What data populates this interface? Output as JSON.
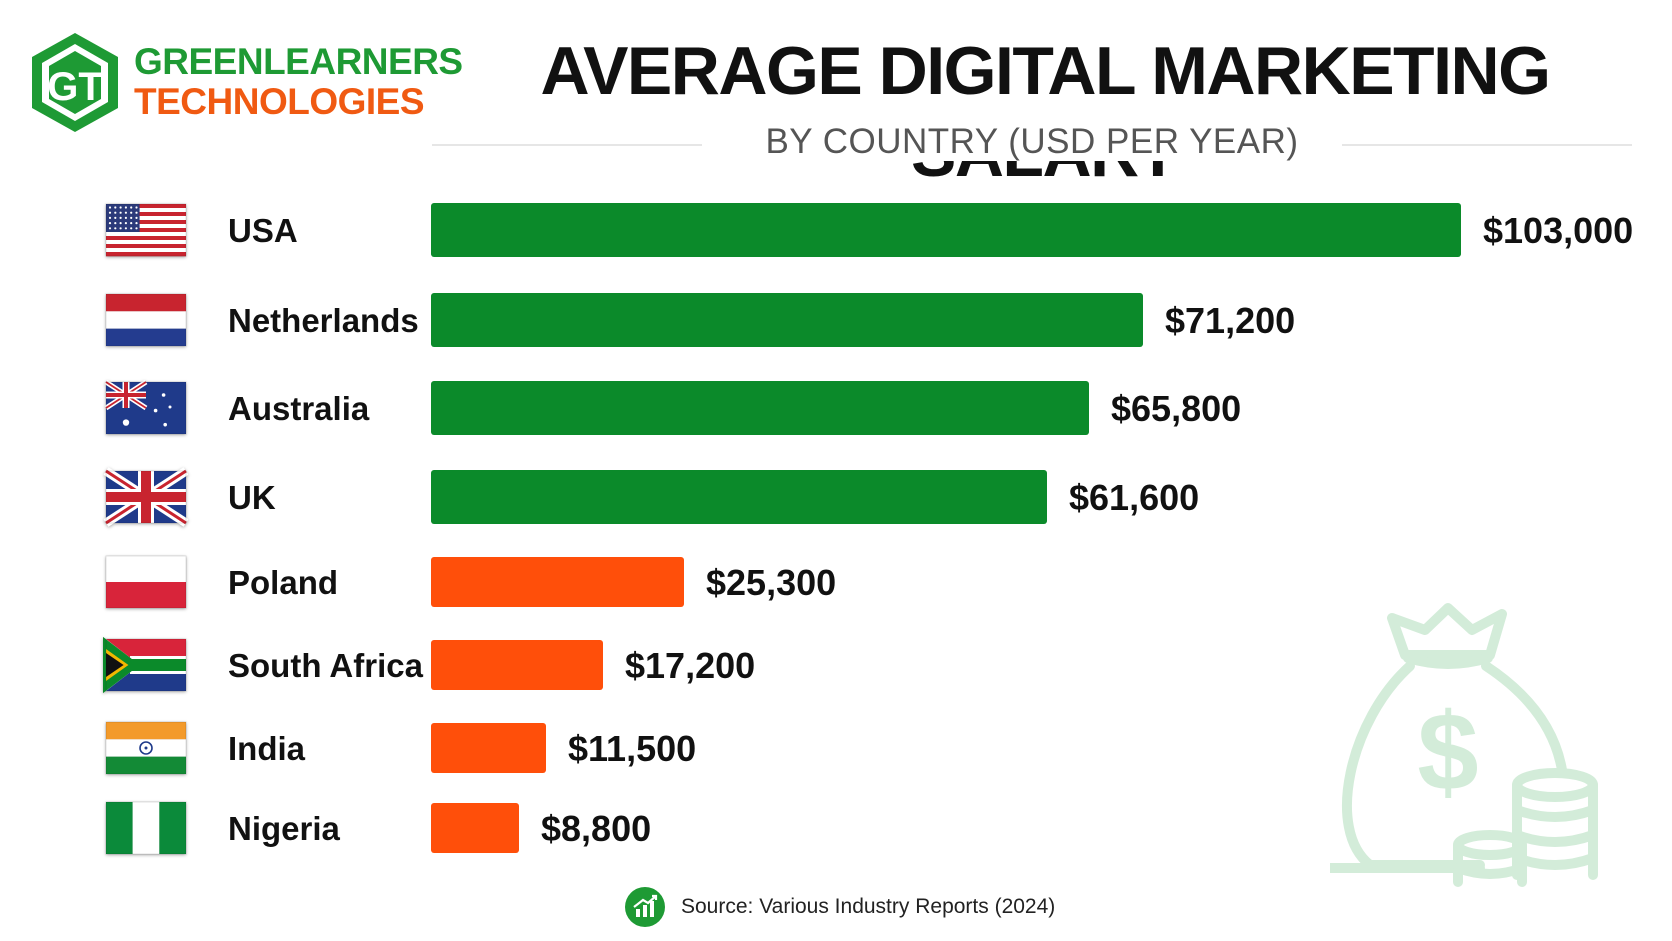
{
  "logo": {
    "line1": "GREENLEARNERS",
    "line2": "TECHNOLOGIES",
    "mark_text": "GT"
  },
  "chart_data": {
    "type": "bar",
    "orientation": "horizontal",
    "title": "AVERAGE DIGITAL MARKETING SALARY",
    "subtitle": "BY COUNTRY (USD PER YEAR)",
    "categories": [
      "USA",
      "Netherlands",
      "Australia",
      "UK",
      "Poland",
      "South Africa",
      "India",
      "Nigeria"
    ],
    "values": [
      103000,
      71200,
      65800,
      61600,
      25300,
      17200,
      11500,
      8800
    ],
    "value_labels": [
      "$103,000",
      "$71,200",
      "$65,800",
      "$61,600",
      "$25,300",
      "$17,200",
      "$11,500",
      "$8,800"
    ],
    "flags": [
      "flag-usa-icon",
      "flag-netherlands-icon",
      "flag-australia-icon",
      "flag-uk-icon",
      "flag-poland-icon",
      "flag-south-africa-icon",
      "flag-india-icon",
      "flag-nigeria-icon"
    ],
    "bar_colors": [
      "#0b8a2a",
      "#0b8a2a",
      "#0b8a2a",
      "#0b8a2a",
      "#ff4f0a",
      "#ff4f0a",
      "#ff4f0a",
      "#ff4f0a"
    ],
    "xlim": [
      0,
      103000
    ],
    "grid": false,
    "legend": "none"
  },
  "source": {
    "text": "Source: Various Industry Reports (2024)",
    "icon": "growth-chart-icon"
  },
  "decoration": {
    "icon": "money-bag-icon"
  },
  "colors": {
    "green": "#0b8a2a",
    "orange": "#ff4f0a",
    "logo_green": "#1e9a34",
    "logo_orange": "#f05a12"
  }
}
